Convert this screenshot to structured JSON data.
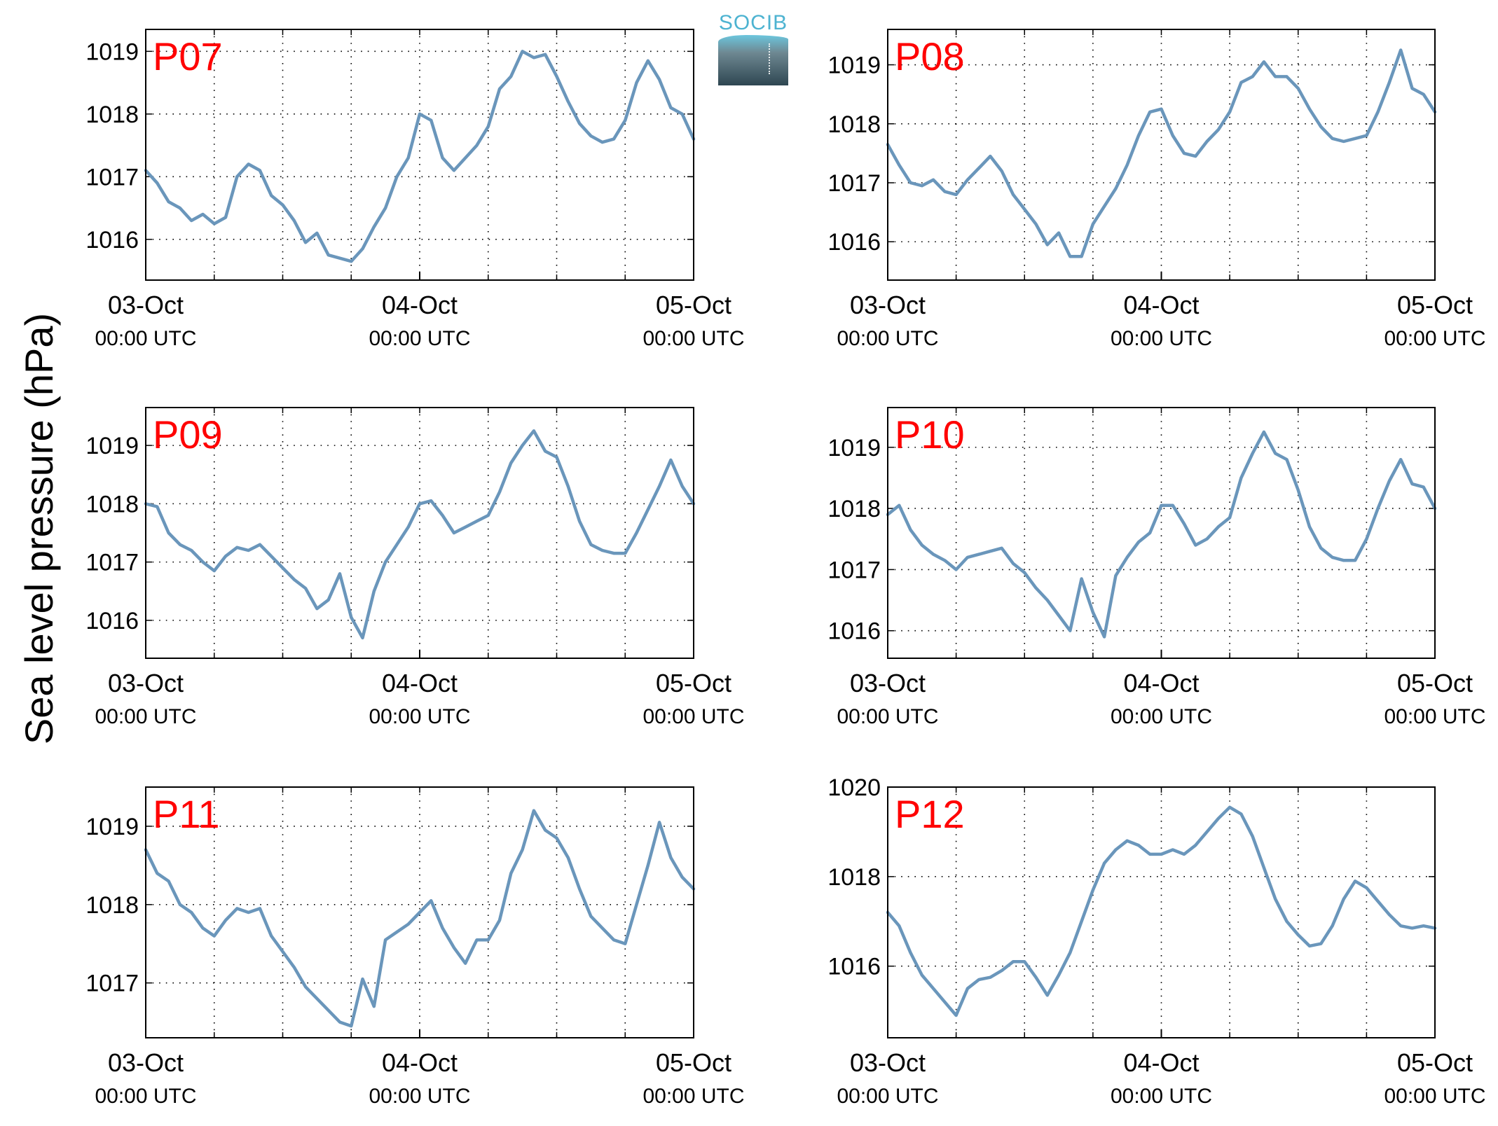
{
  "ylabel": "Sea level pressure (hPa)",
  "logo": {
    "text": "SOCIB"
  },
  "colors": {
    "line": "#6a96bb",
    "station_label": "#ff0000",
    "axes": "#000000"
  },
  "x_ticks": [
    {
      "x": 0,
      "date": "03-Oct",
      "time": "00:00 UTC"
    },
    {
      "x": 24,
      "date": "04-Oct",
      "time": "00:00 UTC"
    },
    {
      "x": 48,
      "date": "05-Oct",
      "time": "00:00 UTC"
    }
  ],
  "chart_data": [
    {
      "type": "line",
      "label": "P07",
      "x_unit": "hours since 03-Oct 00:00 UTC",
      "xlim": [
        0,
        48
      ],
      "ylim": [
        1015.35,
        1019.35
      ],
      "yticks": [
        1016,
        1017,
        1018,
        1019
      ],
      "grid": true,
      "x": [
        0,
        1,
        2,
        3,
        4,
        5,
        6,
        7,
        8,
        9,
        10,
        11,
        12,
        13,
        14,
        15,
        16,
        17,
        18,
        19,
        20,
        21,
        22,
        23,
        24,
        25,
        26,
        27,
        28,
        29,
        30,
        31,
        32,
        33,
        34,
        35,
        36,
        37,
        38,
        39,
        40,
        41,
        42,
        43,
        44,
        45,
        46,
        47,
        48
      ],
      "y": [
        1017.1,
        1016.9,
        1016.6,
        1016.5,
        1016.3,
        1016.4,
        1016.25,
        1016.35,
        1017.0,
        1017.2,
        1017.1,
        1016.7,
        1016.55,
        1016.3,
        1015.95,
        1016.1,
        1015.75,
        1015.7,
        1015.65,
        1015.85,
        1016.2,
        1016.5,
        1017.0,
        1017.3,
        1018.0,
        1017.9,
        1017.3,
        1017.1,
        1017.3,
        1017.5,
        1017.8,
        1018.4,
        1018.6,
        1019.0,
        1018.9,
        1018.95,
        1018.6,
        1018.2,
        1017.85,
        1017.65,
        1017.55,
        1017.6,
        1017.9,
        1018.5,
        1018.85,
        1018.55,
        1018.1,
        1018.0,
        1017.6
      ]
    },
    {
      "type": "line",
      "label": "P08",
      "x_unit": "hours since 03-Oct 00:00 UTC",
      "xlim": [
        0,
        48
      ],
      "ylim": [
        1015.35,
        1019.6
      ],
      "yticks": [
        1016,
        1017,
        1018,
        1019
      ],
      "grid": true,
      "x": [
        0,
        1,
        2,
        3,
        4,
        5,
        6,
        7,
        8,
        9,
        10,
        11,
        12,
        13,
        14,
        15,
        16,
        17,
        18,
        19,
        20,
        21,
        22,
        23,
        24,
        25,
        26,
        27,
        28,
        29,
        30,
        31,
        32,
        33,
        34,
        35,
        36,
        37,
        38,
        39,
        40,
        41,
        42,
        43,
        44,
        45,
        46,
        47,
        48
      ],
      "y": [
        1017.65,
        1017.3,
        1017.0,
        1016.95,
        1017.05,
        1016.85,
        1016.8,
        1017.05,
        1017.25,
        1017.45,
        1017.2,
        1016.8,
        1016.55,
        1016.3,
        1015.95,
        1016.15,
        1015.75,
        1015.75,
        1016.3,
        1016.6,
        1016.9,
        1017.3,
        1017.8,
        1018.2,
        1018.25,
        1017.8,
        1017.5,
        1017.45,
        1017.7,
        1017.9,
        1018.2,
        1018.7,
        1018.8,
        1019.05,
        1018.8,
        1018.8,
        1018.6,
        1018.25,
        1017.95,
        1017.75,
        1017.7,
        1017.75,
        1017.8,
        1018.2,
        1018.7,
        1019.25,
        1018.6,
        1018.5,
        1018.2
      ]
    },
    {
      "type": "line",
      "label": "P09",
      "x_unit": "hours since 03-Oct 00:00 UTC",
      "xlim": [
        0,
        48
      ],
      "ylim": [
        1015.35,
        1019.65
      ],
      "yticks": [
        1016,
        1017,
        1018,
        1019
      ],
      "grid": true,
      "x": [
        0,
        1,
        2,
        3,
        4,
        5,
        6,
        7,
        8,
        9,
        10,
        11,
        12,
        13,
        14,
        15,
        16,
        17,
        18,
        19,
        20,
        21,
        22,
        23,
        24,
        25,
        26,
        27,
        28,
        29,
        30,
        31,
        32,
        33,
        34,
        35,
        36,
        37,
        38,
        39,
        40,
        41,
        42,
        43,
        44,
        45,
        46,
        47,
        48
      ],
      "y": [
        1018.0,
        1017.95,
        1017.5,
        1017.3,
        1017.2,
        1017.0,
        1016.85,
        1017.1,
        1017.25,
        1017.2,
        1017.3,
        1017.1,
        1016.9,
        1016.7,
        1016.55,
        1016.2,
        1016.35,
        1016.8,
        1016.05,
        1015.7,
        1016.5,
        1017.0,
        1017.3,
        1017.6,
        1018.0,
        1018.05,
        1017.8,
        1017.5,
        1017.6,
        1017.7,
        1017.8,
        1018.2,
        1018.7,
        1019.0,
        1019.25,
        1018.9,
        1018.8,
        1018.3,
        1017.7,
        1017.3,
        1017.2,
        1017.15,
        1017.15,
        1017.5,
        1017.9,
        1018.3,
        1018.75,
        1018.3,
        1018.0
      ]
    },
    {
      "type": "line",
      "label": "P10",
      "x_unit": "hours since 03-Oct 00:00 UTC",
      "xlim": [
        0,
        48
      ],
      "ylim": [
        1015.55,
        1019.65
      ],
      "yticks": [
        1016,
        1017,
        1018,
        1019
      ],
      "grid": true,
      "x": [
        0,
        1,
        2,
        3,
        4,
        5,
        6,
        7,
        8,
        9,
        10,
        11,
        12,
        13,
        14,
        15,
        16,
        17,
        18,
        19,
        20,
        21,
        22,
        23,
        24,
        25,
        26,
        27,
        28,
        29,
        30,
        31,
        32,
        33,
        34,
        35,
        36,
        37,
        38,
        39,
        40,
        41,
        42,
        43,
        44,
        45,
        46,
        47,
        48
      ],
      "y": [
        1017.9,
        1018.05,
        1017.65,
        1017.4,
        1017.25,
        1017.15,
        1017.0,
        1017.2,
        1017.25,
        1017.3,
        1017.35,
        1017.1,
        1016.95,
        1016.7,
        1016.5,
        1016.25,
        1016.0,
        1016.85,
        1016.3,
        1015.9,
        1016.9,
        1017.2,
        1017.45,
        1017.6,
        1018.05,
        1018.05,
        1017.75,
        1017.4,
        1017.5,
        1017.7,
        1017.85,
        1018.5,
        1018.9,
        1019.25,
        1018.9,
        1018.8,
        1018.3,
        1017.7,
        1017.35,
        1017.2,
        1017.15,
        1017.15,
        1017.5,
        1018.0,
        1018.45,
        1018.8,
        1018.4,
        1018.35,
        1018.0
      ]
    },
    {
      "type": "line",
      "label": "P11",
      "x_unit": "hours since 03-Oct 00:00 UTC",
      "xlim": [
        0,
        48
      ],
      "ylim": [
        1016.3,
        1019.5
      ],
      "yticks": [
        1017,
        1018,
        1019
      ],
      "grid": true,
      "x": [
        0,
        1,
        2,
        3,
        4,
        5,
        6,
        7,
        8,
        9,
        10,
        11,
        12,
        13,
        14,
        15,
        16,
        17,
        18,
        19,
        20,
        21,
        22,
        23,
        24,
        25,
        26,
        27,
        28,
        29,
        30,
        31,
        32,
        33,
        34,
        35,
        36,
        37,
        38,
        39,
        40,
        41,
        42,
        43,
        44,
        45,
        46,
        47,
        48
      ],
      "y": [
        1018.7,
        1018.4,
        1018.3,
        1018.0,
        1017.9,
        1017.7,
        1017.6,
        1017.8,
        1017.95,
        1017.9,
        1017.95,
        1017.6,
        1017.4,
        1017.2,
        1016.95,
        1016.8,
        1016.65,
        1016.5,
        1016.45,
        1017.05,
        1016.7,
        1017.55,
        1017.65,
        1017.75,
        1017.9,
        1018.05,
        1017.7,
        1017.45,
        1017.25,
        1017.55,
        1017.55,
        1017.8,
        1018.4,
        1018.7,
        1019.2,
        1018.95,
        1018.85,
        1018.6,
        1018.2,
        1017.85,
        1017.7,
        1017.55,
        1017.5,
        1018.0,
        1018.5,
        1019.05,
        1018.6,
        1018.35,
        1018.2
      ]
    },
    {
      "type": "line",
      "label": "P12",
      "x_unit": "hours since 03-Oct 00:00 UTC",
      "xlim": [
        0,
        48
      ],
      "ylim": [
        1014.4,
        1020.0
      ],
      "yticks": [
        1016,
        1018,
        1020
      ],
      "grid": true,
      "x": [
        0,
        1,
        2,
        3,
        4,
        5,
        6,
        7,
        8,
        9,
        10,
        11,
        12,
        13,
        14,
        15,
        16,
        17,
        18,
        19,
        20,
        21,
        22,
        23,
        24,
        25,
        26,
        27,
        28,
        29,
        30,
        31,
        32,
        33,
        34,
        35,
        36,
        37,
        38,
        39,
        40,
        41,
        42,
        43,
        44,
        45,
        46,
        47,
        48
      ],
      "y": [
        1017.2,
        1016.9,
        1016.3,
        1015.8,
        1015.5,
        1015.2,
        1014.9,
        1015.5,
        1015.7,
        1015.75,
        1015.9,
        1016.1,
        1016.1,
        1015.75,
        1015.35,
        1015.8,
        1016.3,
        1017.0,
        1017.7,
        1018.3,
        1018.6,
        1018.8,
        1018.7,
        1018.5,
        1018.5,
        1018.6,
        1018.5,
        1018.7,
        1019.0,
        1019.3,
        1019.55,
        1019.4,
        1018.9,
        1018.2,
        1017.5,
        1017.0,
        1016.7,
        1016.45,
        1016.5,
        1016.9,
        1017.5,
        1017.9,
        1017.75,
        1017.45,
        1017.15,
        1016.9,
        1016.85,
        1016.9,
        1016.85
      ]
    }
  ]
}
